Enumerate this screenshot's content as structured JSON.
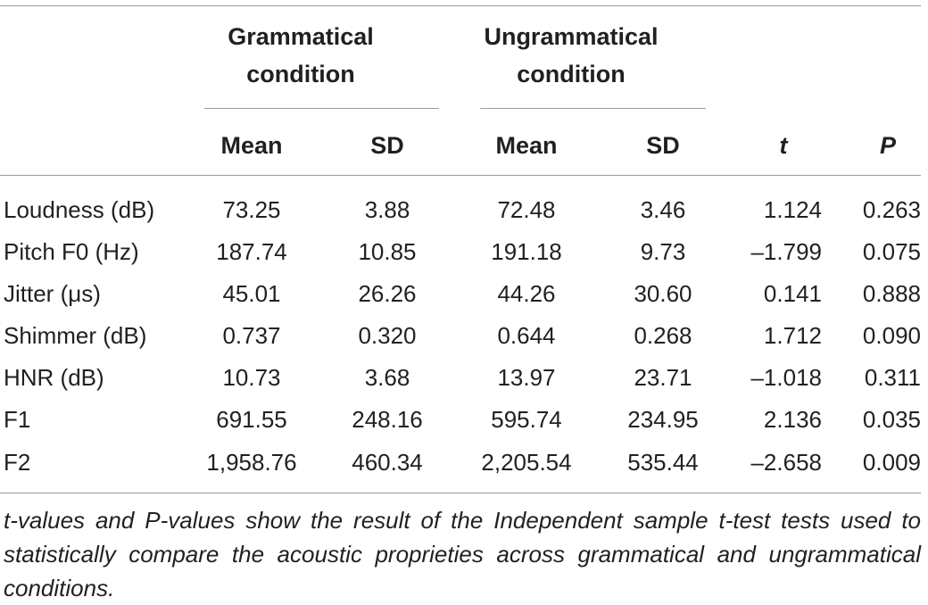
{
  "table": {
    "group_headers": {
      "grammatical": "Grammatical condition",
      "ungrammatical": "Ungrammatical condition"
    },
    "column_headers": [
      "Mean",
      "SD",
      "Mean",
      "SD",
      "t",
      "P"
    ],
    "rows": [
      {
        "label": "Loudness (dB)",
        "g_mean": "73.25",
        "g_sd": "3.88",
        "u_mean": "72.48",
        "u_sd": "3.46",
        "t": "1.124",
        "p": "0.263"
      },
      {
        "label": "Pitch F0 (Hz)",
        "g_mean": "187.74",
        "g_sd": "10.85",
        "u_mean": "191.18",
        "u_sd": "9.73",
        "t": "–1.799",
        "p": "0.075"
      },
      {
        "label": "Jitter (μs)",
        "g_mean": "45.01",
        "g_sd": "26.26",
        "u_mean": "44.26",
        "u_sd": "30.60",
        "t": "0.141",
        "p": "0.888"
      },
      {
        "label": "Shimmer (dB)",
        "g_mean": "0.737",
        "g_sd": "0.320",
        "u_mean": "0.644",
        "u_sd": "0.268",
        "t": "1.712",
        "p": "0.090"
      },
      {
        "label": "HNR (dB)",
        "g_mean": "10.73",
        "g_sd": "3.68",
        "u_mean": "13.97",
        "u_sd": "23.71",
        "t": "–1.018",
        "p": "0.311"
      },
      {
        "label": "F1",
        "g_mean": "691.55",
        "g_sd": "248.16",
        "u_mean": "595.74",
        "u_sd": "234.95",
        "t": "2.136",
        "p": "0.035"
      },
      {
        "label": "F2",
        "g_mean": "1,958.76",
        "g_sd": "460.34",
        "u_mean": "2,205.54",
        "u_sd": "535.44",
        "t": "–2.658",
        "p": "0.009"
      }
    ],
    "footnote": "t-values and P-values show the result of the Independent sample t-test tests used to statistically compare the acoustic proprieties across grammatical and ungrammatical conditions."
  }
}
